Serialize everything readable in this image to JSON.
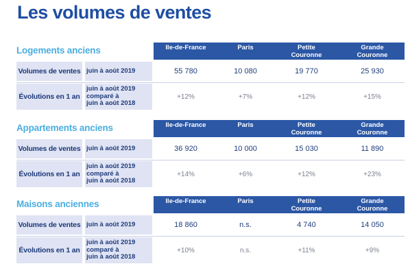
{
  "page_title": "Les volumes de ventes",
  "columns": [
    "Ile-de-France",
    "Paris",
    "Petite\nCouronne",
    "Grande\nCouronne"
  ],
  "row_labels": {
    "volumes": "Volumes de ventes",
    "evolutions": "Évolutions en 1 an"
  },
  "period_labels": {
    "volumes": "juin à août 2019",
    "evolutions": "juin à août 2019\ncomparé à\njuin à août 2018"
  },
  "sections": [
    {
      "title": "Logements anciens",
      "volumes": [
        "55 780",
        "10 080",
        "19 770",
        "25 930"
      ],
      "evolutions": [
        "+12%",
        "+7%",
        "+12%",
        "+15%"
      ]
    },
    {
      "title": "Appartements anciens",
      "volumes": [
        "36 920",
        "10 000",
        "15 030",
        "11 890"
      ],
      "evolutions": [
        "+14%",
        "+6%",
        "+12%",
        "+23%"
      ]
    },
    {
      "title": "Maisons anciennes",
      "volumes": [
        "18 860",
        "n.s.",
        "4 740",
        "14 050"
      ],
      "evolutions": [
        "+10%",
        "n.s.",
        "+11%",
        "+9%"
      ]
    }
  ],
  "colors": {
    "title": "#1f4ea3",
    "section_title": "#4aaee0",
    "header_bg": "#2b57a5",
    "label_bg": "#dfe3f3"
  }
}
